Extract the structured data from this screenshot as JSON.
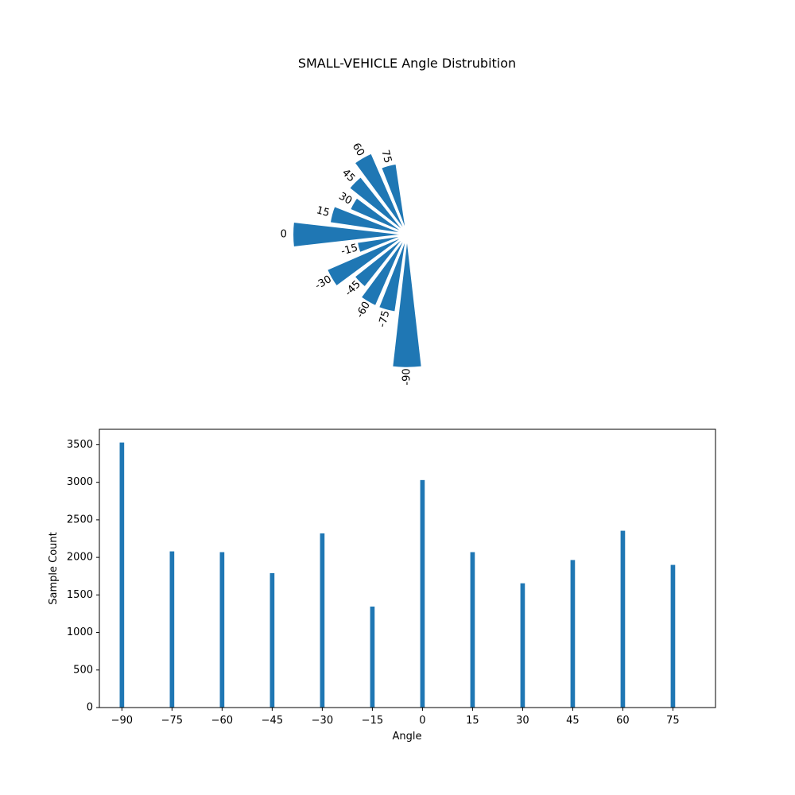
{
  "figure_title": "SMALL-VEHICLE Angle Distrubition",
  "colors": {
    "bar": "#1f77b4",
    "axis": "#000000",
    "edge": "#ffffff"
  },
  "chart_data": [
    {
      "type": "polar-bar",
      "title": "SMALL-VEHICLE Angle Distrubition",
      "categories": [
        "-90",
        "-75",
        "-60",
        "-45",
        "-30",
        "-15",
        "0",
        "15",
        "30",
        "45",
        "60",
        "75"
      ],
      "theta_deg": [
        -90,
        -75,
        -60,
        -45,
        -30,
        -15,
        0,
        15,
        30,
        45,
        60,
        75
      ],
      "values": [
        3530,
        2080,
        2070,
        1790,
        2320,
        1345,
        3030,
        2070,
        1655,
        1965,
        2355,
        1900
      ],
      "grid": false,
      "axis_visible": false
    },
    {
      "type": "bar",
      "x": [
        -90,
        -75,
        -60,
        -45,
        -30,
        -15,
        0,
        15,
        30,
        45,
        60,
        75
      ],
      "values": [
        3530,
        2080,
        2070,
        1790,
        2320,
        1345,
        3030,
        2070,
        1655,
        1965,
        2355,
        1900
      ],
      "x_tick_labels": [
        "−90",
        "−75",
        "−60",
        "−45",
        "−30",
        "−15",
        "0",
        "15",
        "30",
        "45",
        "60",
        "75"
      ],
      "y_ticks": [
        0,
        500,
        1000,
        1500,
        2000,
        2500,
        3000,
        3500
      ],
      "y_tick_labels": [
        "0",
        "500",
        "1000",
        "1500",
        "2000",
        "2500",
        "3000",
        "3500"
      ],
      "xlabel": "Angle",
      "ylabel": "Sample Count",
      "xlim": [
        -96.75,
        87.75
      ],
      "ylim": [
        0,
        3706
      ],
      "grid": false
    }
  ]
}
